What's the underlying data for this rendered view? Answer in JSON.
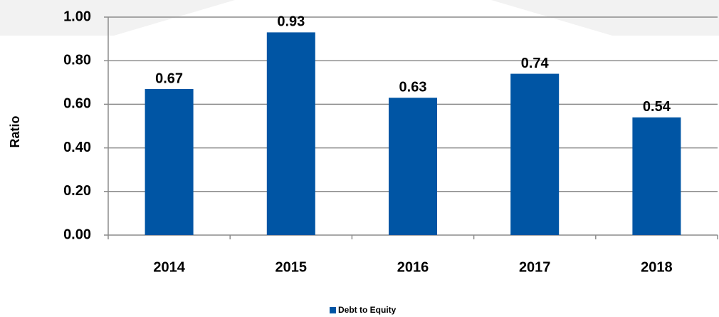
{
  "chart_data": {
    "type": "bar",
    "ylabel": "Ratio",
    "categories": [
      "2014",
      "2015",
      "2016",
      "2017",
      "2018"
    ],
    "series": [
      {
        "name": "Debt to Equity",
        "color": "#0055a4",
        "values": [
          0.67,
          0.93,
          0.63,
          0.74,
          0.54
        ]
      }
    ],
    "ylim": [
      0,
      1
    ],
    "yticks": [
      {
        "value": 0,
        "label": "0.00"
      },
      {
        "value": 0.2,
        "label": "0.20"
      },
      {
        "value": 0.4,
        "label": "0.40"
      },
      {
        "value": 0.6,
        "label": "0.60"
      },
      {
        "value": 0.8,
        "label": "0.80"
      },
      {
        "value": 1,
        "label": "1.00"
      }
    ],
    "grid": true
  }
}
